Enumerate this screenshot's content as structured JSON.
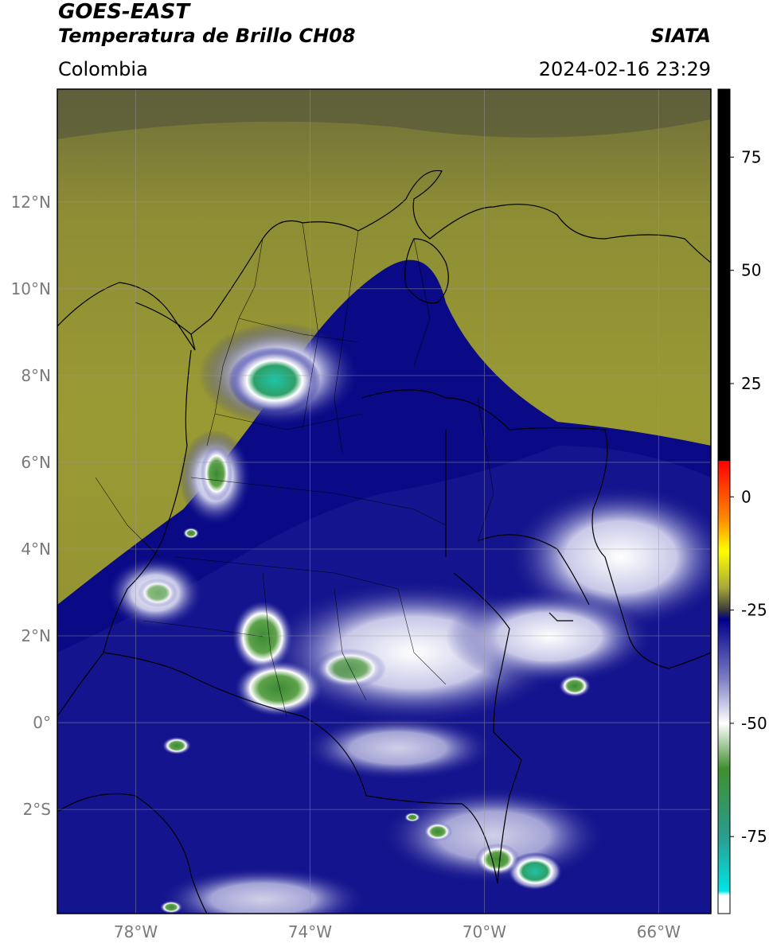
{
  "header": {
    "satellite": "GOES-EAST",
    "product": "Temperatura de Brillo CH08",
    "region": "Colombia",
    "source": "SIATA",
    "datetime": "2024-02-16 23:29"
  },
  "map": {
    "lat_labels": [
      "12°N",
      "10°N",
      "8°N",
      "6°N",
      "4°N",
      "2°N",
      "0°",
      "2°S"
    ],
    "lon_labels": [
      "78°W",
      "74°W",
      "70°W",
      "66°W"
    ],
    "extent": {
      "lon_min": -79.8,
      "lon_max": -64.8,
      "lat_min": -4.4,
      "lat_max": 14.6
    },
    "gridlines": true
  },
  "colorbar": {
    "labels": [
      "75",
      "50",
      "25",
      "0",
      "-25",
      "-50",
      "-75"
    ],
    "min": -92,
    "max": 90,
    "stops": [
      {
        "value": 90,
        "color": "#000000"
      },
      {
        "value": 8,
        "color": "#000000"
      },
      {
        "value": 7.9,
        "color": "#ff0000"
      },
      {
        "value": -5,
        "color": "#ff8c00"
      },
      {
        "value": -12,
        "color": "#ffff00"
      },
      {
        "value": -20,
        "color": "#a8a83a"
      },
      {
        "value": -25,
        "color": "#3a3a3a"
      },
      {
        "value": -27,
        "color": "#00008b"
      },
      {
        "value": -40,
        "color": "#7b7bc4"
      },
      {
        "value": -50,
        "color": "#ffffff"
      },
      {
        "value": -60,
        "color": "#3f8f2f"
      },
      {
        "value": -75,
        "color": "#2a9d8f"
      },
      {
        "value": -87,
        "color": "#00e5e5"
      },
      {
        "value": -88,
        "color": "#ffffff"
      },
      {
        "value": -92,
        "color": "#ffffff"
      }
    ]
  }
}
